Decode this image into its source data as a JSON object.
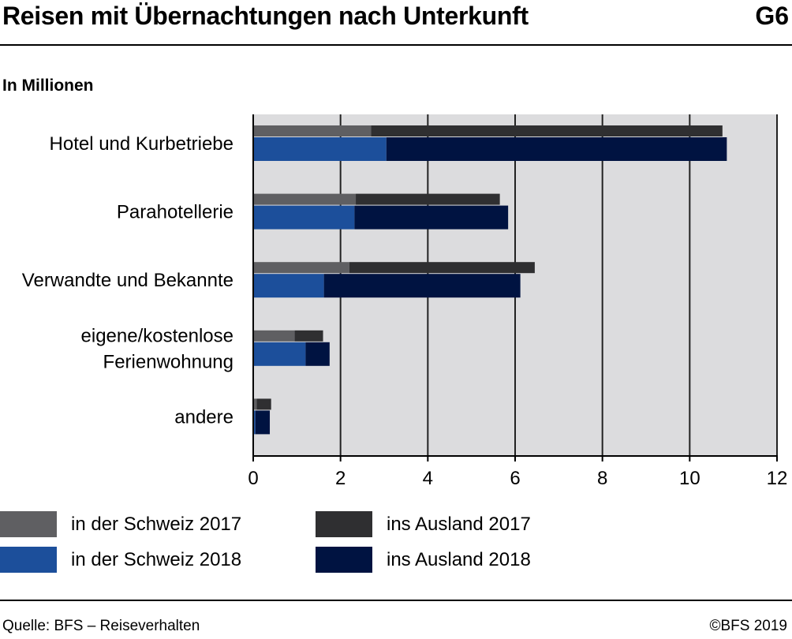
{
  "header": {
    "title": "Reisen mit Übernachtungen nach Unterkunft",
    "figure_no": "G6"
  },
  "unit_label": "In Millionen",
  "footer": {
    "source": "Quelle: BFS – Reiseverhalten",
    "copyright": "©BFS 2019"
  },
  "colors": {
    "plot_bg": "#dcdcde",
    "gridline": "#222222",
    "ch_2017": "#5f5f62",
    "abroad_2017": "#2f2f31",
    "ch_2018": "#1c4f9b",
    "abroad_2018": "#001341"
  },
  "chart_data": {
    "type": "bar",
    "orientation": "horizontal",
    "stacked": true,
    "categories": [
      [
        "Hotel und Kurbetriebe"
      ],
      [
        "Parahotellerie"
      ],
      [
        "Verwandte und Bekannte"
      ],
      [
        "eigene/kostenlose",
        "Ferienwohnung"
      ],
      [
        "andere"
      ]
    ],
    "groups": [
      {
        "year": "2017",
        "segments": [
          {
            "name": "in der Schweiz 2017",
            "color": "#5f5f62",
            "values": [
              2.7,
              2.35,
              2.2,
              0.95,
              0.08
            ]
          },
          {
            "name": "ins Ausland 2017",
            "color": "#2f2f31",
            "values": [
              8.05,
              3.3,
              4.25,
              0.65,
              0.33
            ]
          }
        ]
      },
      {
        "year": "2018",
        "segments": [
          {
            "name": "in der Schweiz 2018",
            "color": "#1c4f9b",
            "values": [
              3.05,
              2.32,
              1.62,
              1.2,
              0.05
            ]
          },
          {
            "name": "ins Ausland 2018",
            "color": "#001341",
            "values": [
              7.8,
              3.52,
              4.5,
              0.55,
              0.33
            ]
          }
        ]
      }
    ],
    "xlim": [
      0,
      12
    ],
    "xticks": [
      0,
      2,
      4,
      6,
      8,
      10,
      12
    ],
    "grid": true,
    "legend_position": "bottom"
  }
}
